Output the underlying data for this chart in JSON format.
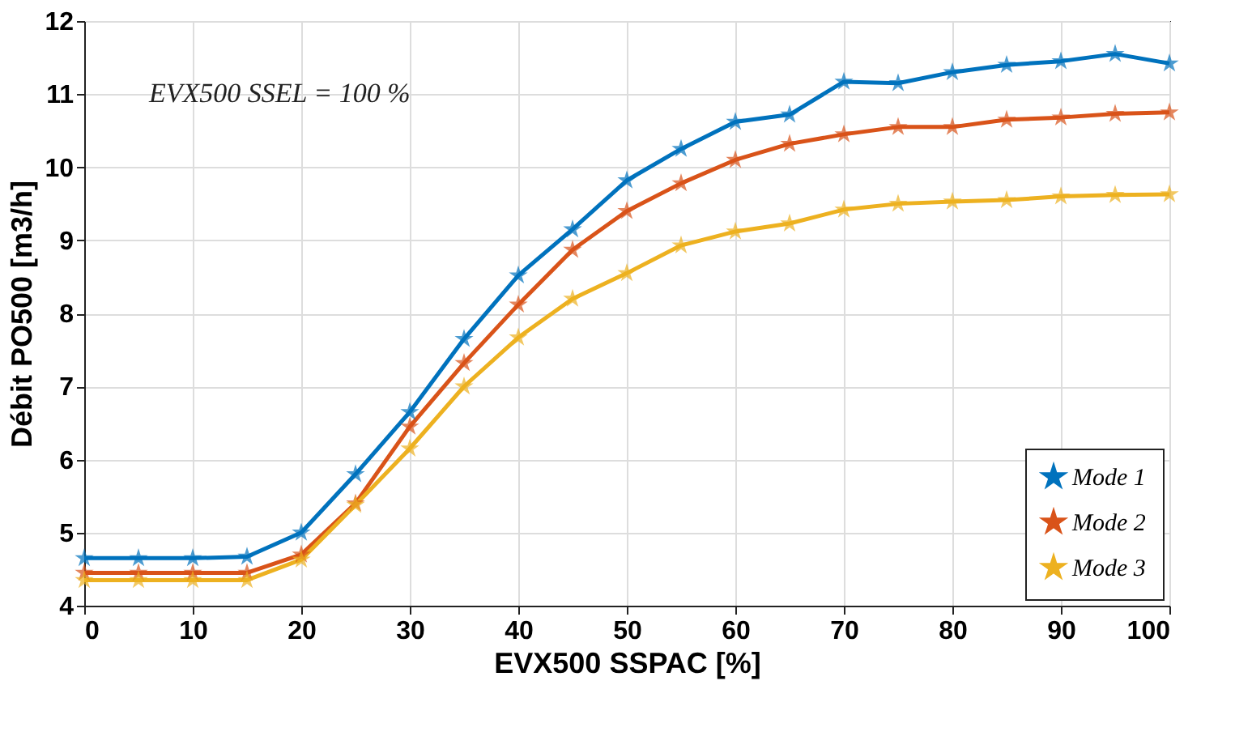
{
  "chart_data": {
    "type": "line",
    "xlabel": "EVX500 SSPAC [%]",
    "ylabel": "Débit PO500 [m3/h]",
    "annotations": [
      "EVX500 SSEL = 100 %"
    ],
    "x": [
      0,
      5,
      10,
      15,
      20,
      25,
      30,
      35,
      40,
      45,
      50,
      55,
      60,
      65,
      70,
      75,
      80,
      85,
      90,
      95,
      100
    ],
    "series": [
      {
        "name": "Mode 1",
        "color": "#0072bd",
        "values": [
          4.65,
          4.65,
          4.65,
          4.67,
          5.0,
          5.8,
          6.65,
          7.65,
          8.52,
          9.15,
          9.82,
          10.25,
          10.62,
          10.72,
          11.17,
          11.15,
          11.3,
          11.4,
          11.45,
          11.55,
          11.42
        ]
      },
      {
        "name": "Mode 2",
        "color": "#d95319",
        "values": [
          4.45,
          4.45,
          4.45,
          4.45,
          4.7,
          5.4,
          6.45,
          7.32,
          8.12,
          8.87,
          9.4,
          9.78,
          10.1,
          10.32,
          10.45,
          10.55,
          10.55,
          10.65,
          10.68,
          10.73,
          10.75
        ]
      },
      {
        "name": "Mode 3",
        "color": "#edb120",
        "values": [
          4.35,
          4.35,
          4.35,
          4.35,
          4.63,
          5.38,
          6.15,
          7.0,
          7.67,
          8.2,
          8.55,
          8.93,
          9.12,
          9.23,
          9.42,
          9.5,
          9.53,
          9.55,
          9.6,
          9.62,
          9.63
        ]
      }
    ],
    "xlim": [
      0,
      100
    ],
    "xticks": [
      0,
      10,
      20,
      30,
      40,
      50,
      60,
      70,
      80,
      90,
      100
    ],
    "ylim": [
      4,
      12
    ],
    "yticks": [
      4,
      5,
      6,
      7,
      8,
      9,
      10,
      11,
      12
    ],
    "grid": true,
    "legend": "bottom right",
    "marker": "star",
    "line_style": "solid"
  }
}
